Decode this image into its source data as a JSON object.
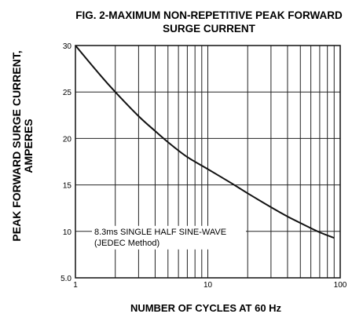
{
  "chart_data": {
    "type": "line",
    "title_line1": "FIG. 2-MAXIMUM NON-REPETITIVE PEAK FORWARD",
    "title_line2": "SURGE CURRENT",
    "ylabel_line1": "PEAK  FORWARD SURGE CURRENT,",
    "ylabel_line2": "AMPERES",
    "xlabel": "NUMBER OF CYCLES AT 60 Hz",
    "x_scale": "log",
    "xlim": [
      1,
      100
    ],
    "ylim": [
      5,
      30
    ],
    "x_tick_labels": [
      "1",
      "10",
      "100"
    ],
    "x_ticks": [
      1,
      10,
      100
    ],
    "y_tick_labels": [
      "30",
      "25",
      "20",
      "15",
      "10",
      "5.0"
    ],
    "y_ticks": [
      30,
      25,
      20,
      15,
      10,
      5
    ],
    "grid": true,
    "annotation_line1": "8.3ms SINGLE HALF SINE-WAVE",
    "annotation_line2": "(JEDEC Method)",
    "line_color": "#111111",
    "series": [
      {
        "x": [
          1,
          1.5,
          2,
          3,
          4,
          5,
          7,
          10,
          15,
          20,
          30,
          40,
          50,
          70,
          90
        ],
        "y": [
          30,
          27,
          25,
          22.4,
          20.8,
          19.6,
          18,
          16.7,
          15.2,
          14.1,
          12.6,
          11.6,
          10.9,
          9.9,
          9.3
        ]
      }
    ]
  }
}
